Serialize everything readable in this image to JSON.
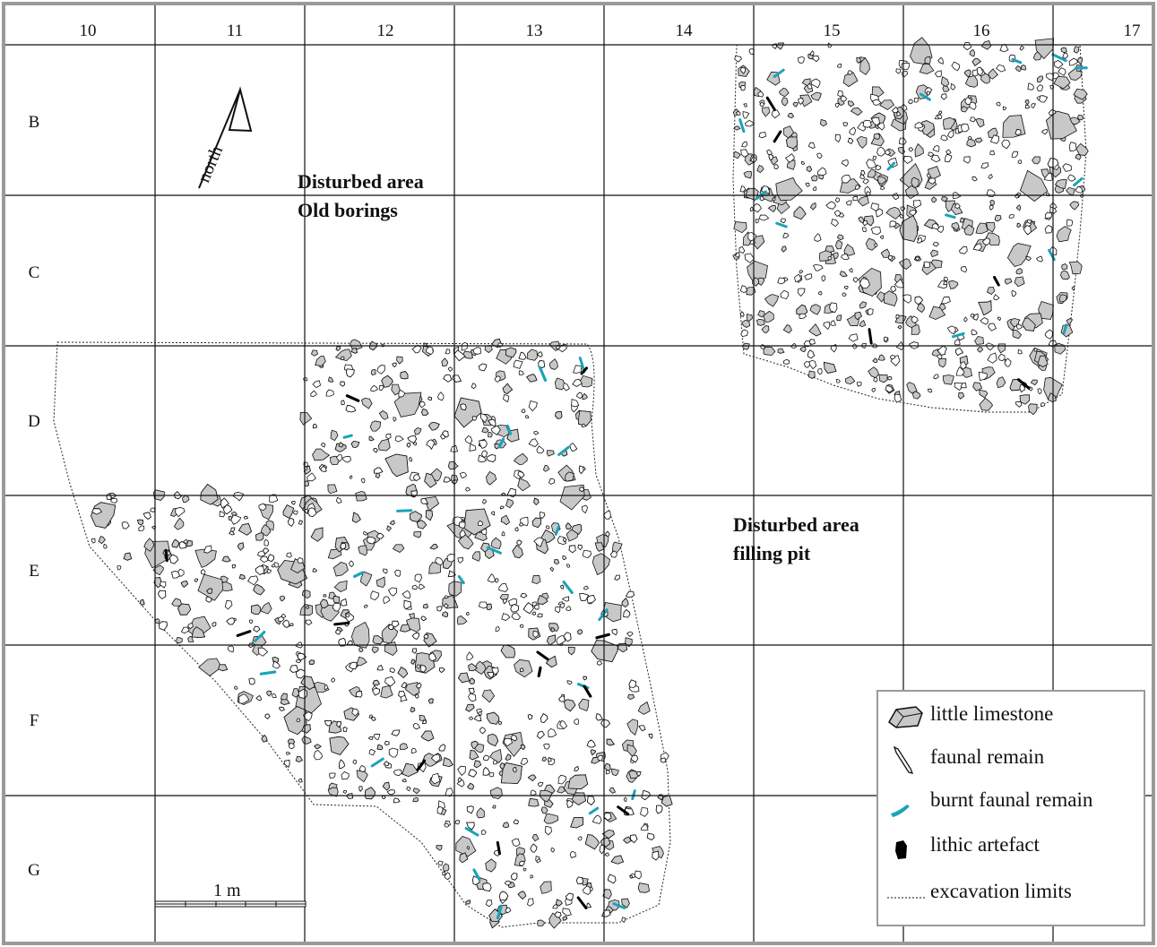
{
  "grid": {
    "columns": [
      "10",
      "11",
      "12",
      "13",
      "14",
      "15",
      "16",
      "17"
    ],
    "rows": [
      "B",
      "C",
      "D",
      "E",
      "F",
      "G"
    ]
  },
  "north_label": "north",
  "areas": [
    {
      "line1": "Disturbed area",
      "line2": "Old borings"
    },
    {
      "line1": "Disturbed area",
      "line2": "filling pit"
    }
  ],
  "scale_label": "1 m",
  "legend": [
    {
      "label": "little limestone",
      "symbol": "limestone-icon"
    },
    {
      "label": "faunal remain",
      "symbol": "bone-icon"
    },
    {
      "label": "burnt faunal remain",
      "symbol": "burnt-bone-icon"
    },
    {
      "label": "lithic artefact",
      "symbol": "lithic-icon"
    },
    {
      "label": "excavation limits",
      "symbol": "dotted-line-icon"
    }
  ],
  "colors": {
    "limestone_fill": "#c8c8c8",
    "outline": "#111111",
    "burnt": "#1aa3b8",
    "lithic": "#000000",
    "frame": "#9a9a9a"
  }
}
